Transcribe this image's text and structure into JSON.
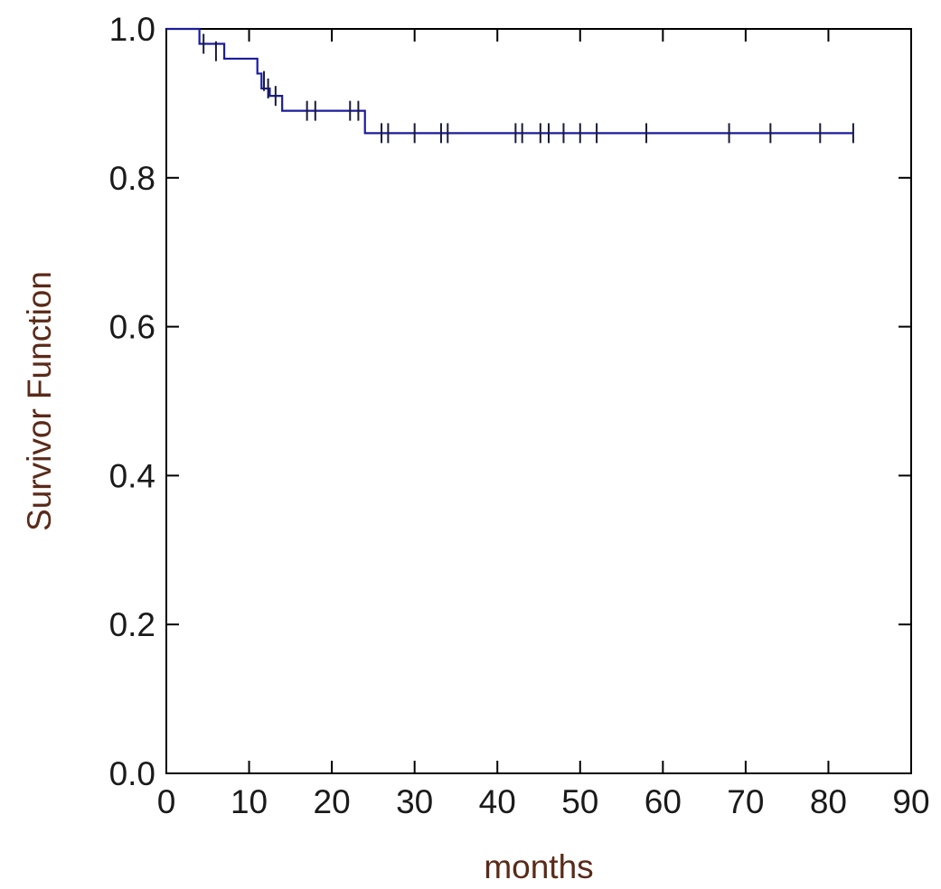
{
  "chart_data": {
    "type": "line",
    "xlabel": "months",
    "ylabel": "Survivor Function",
    "xlim": [
      0,
      90
    ],
    "ylim": [
      0.0,
      1.0
    ],
    "x_ticks": [
      "0",
      "10",
      "20",
      "30",
      "40",
      "50",
      "60",
      "70",
      "80",
      "90"
    ],
    "y_ticks": [
      "0.0",
      "0.2",
      "0.4",
      "0.6",
      "0.8",
      "1.0"
    ],
    "grid": false,
    "series": [
      {
        "step": true,
        "x": [
          0,
          4.0,
          5.0,
          7.0,
          11.0,
          11.5,
          12.5,
          14.0,
          24.0,
          83.0
        ],
        "y": [
          1.0,
          0.98,
          0.98,
          0.96,
          0.94,
          0.92,
          0.91,
          0.89,
          0.86,
          0.86
        ],
        "censored": [
          {
            "x": 4.5,
            "y": 0.98
          },
          {
            "x": 6.0,
            "y": 0.97
          },
          {
            "x": 11.8,
            "y": 0.93
          },
          {
            "x": 12.3,
            "y": 0.92
          },
          {
            "x": 13.2,
            "y": 0.91
          },
          {
            "x": 17.0,
            "y": 0.89
          },
          {
            "x": 18.0,
            "y": 0.89
          },
          {
            "x": 22.2,
            "y": 0.89
          },
          {
            "x": 23.2,
            "y": 0.89
          },
          {
            "x": 26.0,
            "y": 0.86
          },
          {
            "x": 26.8,
            "y": 0.86
          },
          {
            "x": 30.0,
            "y": 0.86
          },
          {
            "x": 33.2,
            "y": 0.86
          },
          {
            "x": 34.0,
            "y": 0.86
          },
          {
            "x": 42.2,
            "y": 0.86
          },
          {
            "x": 43.0,
            "y": 0.86
          },
          {
            "x": 45.2,
            "y": 0.86
          },
          {
            "x": 46.2,
            "y": 0.86
          },
          {
            "x": 48.0,
            "y": 0.86
          },
          {
            "x": 50.0,
            "y": 0.86
          },
          {
            "x": 52.0,
            "y": 0.86
          },
          {
            "x": 58.0,
            "y": 0.86
          },
          {
            "x": 68.0,
            "y": 0.86
          },
          {
            "x": 73.0,
            "y": 0.86
          },
          {
            "x": 79.0,
            "y": 0.86
          },
          {
            "x": 83.0,
            "y": 0.86
          }
        ],
        "color": "#1c1c9c"
      }
    ]
  },
  "colors": {
    "axis": "#000000",
    "tick_label": "#1a1a1a",
    "axis_title": "#5a2a18",
    "curve": "#1c1c9c",
    "censor_mark": "#1a1a3a"
  }
}
